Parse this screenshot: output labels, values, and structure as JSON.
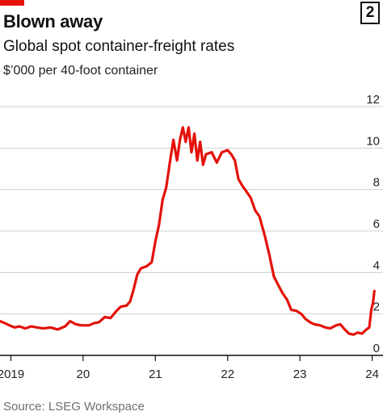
{
  "header": {
    "number": "2",
    "title": "Blown away",
    "subtitle": "Global spot container-freight rates",
    "unit": "$’000 per 40-foot container"
  },
  "source": "Source: LSEG Workspace",
  "colors": {
    "line": "#e3120b",
    "tag": "#e3120b",
    "grid": "#cfcfcf",
    "axis": "#111111"
  },
  "chart_data": {
    "type": "line",
    "title": "Global spot container-freight rates",
    "ylabel": "$’000 per 40-foot container",
    "xlim": [
      2018.85,
      2024.15
    ],
    "ylim": [
      0,
      12
    ],
    "y_ticks": [
      0,
      2,
      4,
      6,
      8,
      10,
      12
    ],
    "y_tick_labels": [
      "0",
      "2",
      "4",
      "6",
      "8",
      "10",
      "12"
    ],
    "x_ticks": [
      2019,
      2020,
      2021,
      2022,
      2023,
      2024
    ],
    "x_tick_labels": [
      "2019",
      "20",
      "21",
      "22",
      "23",
      "24"
    ],
    "y_axis_side": "right",
    "grid": "horizontal",
    "series": [
      {
        "values": [
          [
            2018.85,
            1.65
          ],
          [
            2018.92,
            1.55
          ],
          [
            2018.98,
            1.45
          ],
          [
            2019.05,
            1.35
          ],
          [
            2019.12,
            1.4
          ],
          [
            2019.2,
            1.3
          ],
          [
            2019.28,
            1.4
          ],
          [
            2019.36,
            1.35
          ],
          [
            2019.45,
            1.3
          ],
          [
            2019.55,
            1.35
          ],
          [
            2019.65,
            1.25
          ],
          [
            2019.75,
            1.4
          ],
          [
            2019.82,
            1.65
          ],
          [
            2019.9,
            1.5
          ],
          [
            2019.98,
            1.45
          ],
          [
            2020.08,
            1.45
          ],
          [
            2020.15,
            1.55
          ],
          [
            2020.22,
            1.6
          ],
          [
            2020.3,
            1.85
          ],
          [
            2020.38,
            1.8
          ],
          [
            2020.45,
            2.1
          ],
          [
            2020.52,
            2.35
          ],
          [
            2020.6,
            2.4
          ],
          [
            2020.65,
            2.6
          ],
          [
            2020.7,
            3.2
          ],
          [
            2020.75,
            3.9
          ],
          [
            2020.8,
            4.2
          ],
          [
            2020.88,
            4.3
          ],
          [
            2020.95,
            4.5
          ],
          [
            2021.0,
            5.5
          ],
          [
            2021.05,
            6.3
          ],
          [
            2021.1,
            7.5
          ],
          [
            2021.15,
            8.1
          ],
          [
            2021.2,
            9.3
          ],
          [
            2021.25,
            10.4
          ],
          [
            2021.3,
            9.4
          ],
          [
            2021.34,
            10.4
          ],
          [
            2021.38,
            11.0
          ],
          [
            2021.42,
            10.3
          ],
          [
            2021.46,
            11.0
          ],
          [
            2021.5,
            9.8
          ],
          [
            2021.54,
            10.7
          ],
          [
            2021.58,
            9.4
          ],
          [
            2021.62,
            10.3
          ],
          [
            2021.66,
            9.2
          ],
          [
            2021.7,
            9.7
          ],
          [
            2021.78,
            9.8
          ],
          [
            2021.85,
            9.3
          ],
          [
            2021.92,
            9.8
          ],
          [
            2022.0,
            9.9
          ],
          [
            2022.05,
            9.7
          ],
          [
            2022.1,
            9.4
          ],
          [
            2022.15,
            8.5
          ],
          [
            2022.2,
            8.2
          ],
          [
            2022.26,
            7.9
          ],
          [
            2022.32,
            7.6
          ],
          [
            2022.38,
            7.0
          ],
          [
            2022.44,
            6.7
          ],
          [
            2022.52,
            5.7
          ],
          [
            2022.58,
            4.8
          ],
          [
            2022.64,
            3.8
          ],
          [
            2022.7,
            3.4
          ],
          [
            2022.76,
            3.0
          ],
          [
            2022.82,
            2.7
          ],
          [
            2022.88,
            2.2
          ],
          [
            2022.95,
            2.15
          ],
          [
            2023.02,
            2.0
          ],
          [
            2023.08,
            1.75
          ],
          [
            2023.14,
            1.6
          ],
          [
            2023.2,
            1.5
          ],
          [
            2023.28,
            1.45
          ],
          [
            2023.35,
            1.35
          ],
          [
            2023.42,
            1.3
          ],
          [
            2023.5,
            1.45
          ],
          [
            2023.56,
            1.5
          ],
          [
            2023.62,
            1.25
          ],
          [
            2023.68,
            1.05
          ],
          [
            2023.74,
            1.0
          ],
          [
            2023.8,
            1.1
          ],
          [
            2023.86,
            1.05
          ],
          [
            2023.92,
            1.25
          ],
          [
            2023.96,
            1.35
          ],
          [
            2023.99,
            2.25
          ],
          [
            2024.01,
            2.5
          ],
          [
            2024.03,
            3.1
          ]
        ]
      }
    ]
  }
}
